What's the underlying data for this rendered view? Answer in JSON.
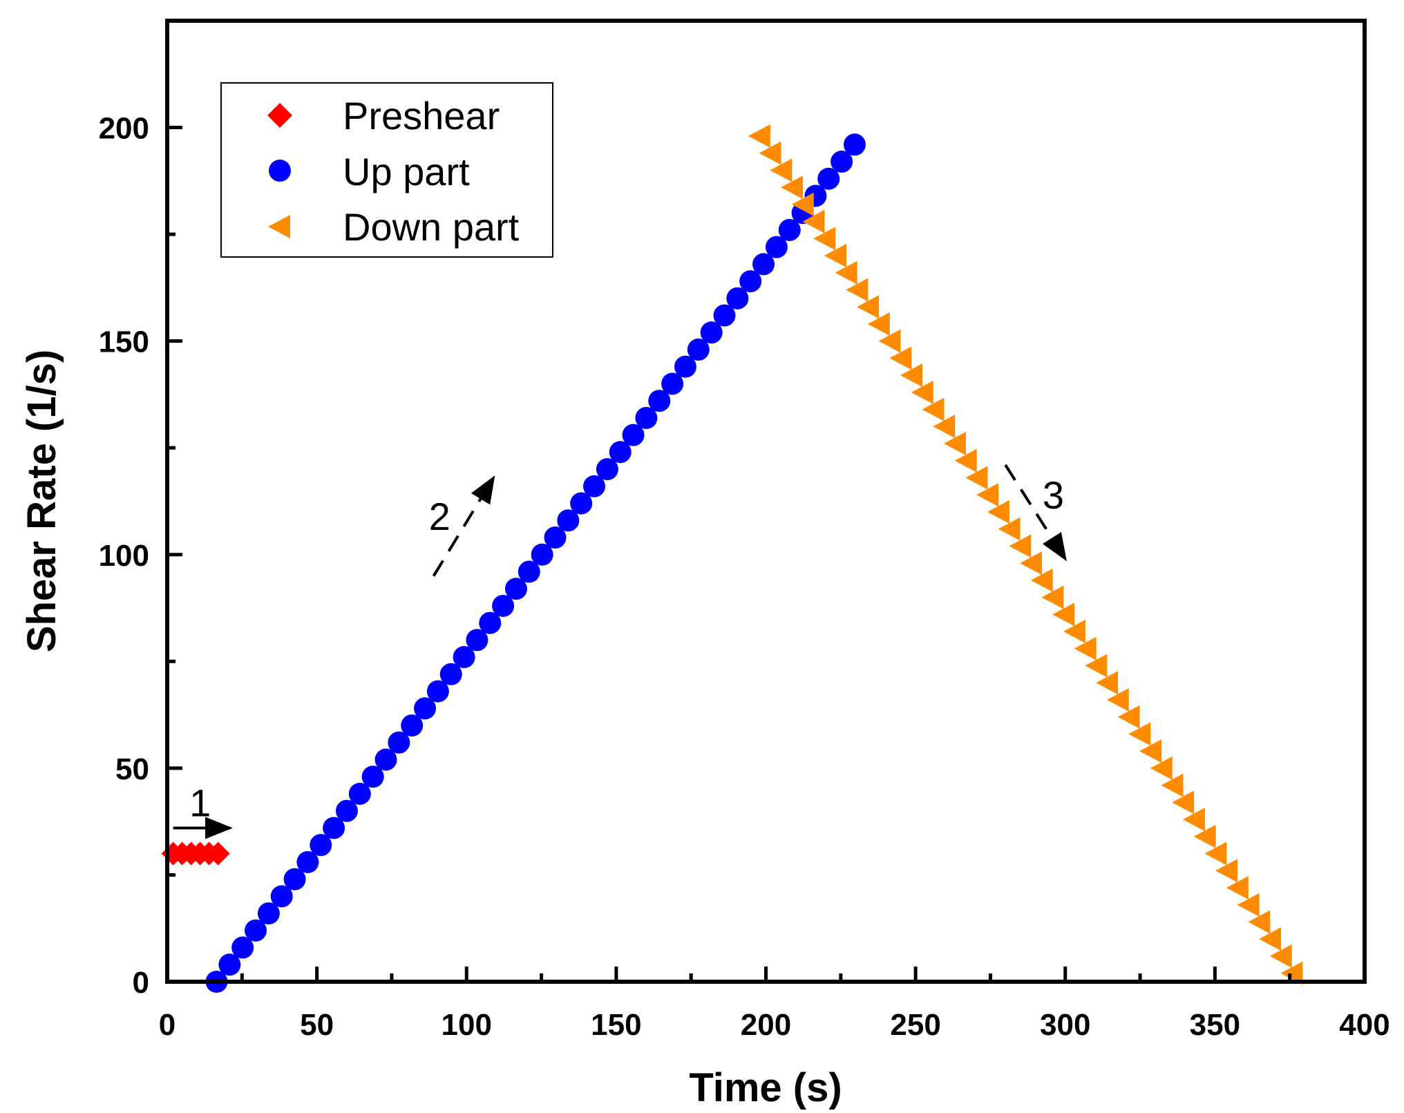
{
  "chart_data": {
    "type": "scatter",
    "title": "",
    "xlabel": "Time (s)",
    "ylabel": "Shear Rate (1/s)",
    "xlim": [
      0,
      400
    ],
    "ylim": [
      0,
      225
    ],
    "xticks": [
      0,
      50,
      100,
      150,
      200,
      250,
      300,
      350,
      400
    ],
    "yticks": [
      0,
      50,
      100,
      150,
      200
    ],
    "grid": false,
    "legend_position": "top-left",
    "series": [
      {
        "name": "Preshear",
        "marker": "diamond",
        "color": "#ff0000",
        "x": [
          2,
          5,
          8,
          11,
          14,
          17
        ],
        "y": [
          30,
          30,
          30,
          30,
          30,
          30
        ]
      },
      {
        "name": "Up part",
        "marker": "circle",
        "color": "#0000ff",
        "x_start": 16.5,
        "x_step": 4.35,
        "y_start": 0,
        "y_step": 4,
        "count": 50
      },
      {
        "name": "Down part",
        "marker": "triangle-left",
        "color": "#ff8c00",
        "x_start": 198,
        "x_step": 3.63,
        "y_start": 198,
        "y_step": -4,
        "count": 50
      }
    ],
    "annotations": [
      {
        "label": "1",
        "x": 11,
        "y": 42,
        "arrow_from": [
          2,
          36
        ],
        "arrow_to": [
          21,
          36
        ]
      },
      {
        "label": "2",
        "x": 91,
        "y": 109,
        "arrow_from": [
          89,
          95
        ],
        "arrow_to": [
          109,
          118
        ]
      },
      {
        "label": "3",
        "x": 296,
        "y": 114,
        "arrow_from": [
          280,
          121
        ],
        "arrow_to": [
          300,
          99
        ]
      }
    ]
  }
}
